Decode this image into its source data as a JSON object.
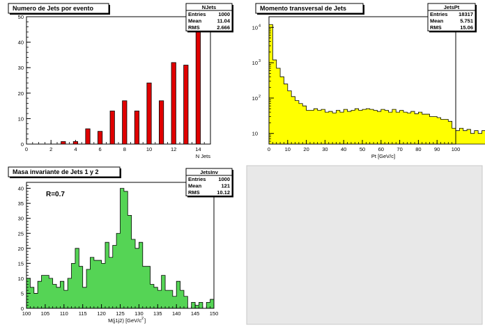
{
  "chart_data": [
    {
      "type": "bar",
      "title": "Numero de Jets por evento",
      "xlabel": "N Jets",
      "ylabel": "",
      "xlim": [
        0,
        15
      ],
      "ylim": [
        0,
        50
      ],
      "x_ticks": [
        0,
        2,
        4,
        6,
        8,
        10,
        12,
        14
      ],
      "y_ticks": [
        0,
        10,
        20,
        30,
        40,
        50
      ],
      "bar_color": "#e00000",
      "fill_color": "#ffffff",
      "x": [
        3,
        4,
        5,
        6,
        7,
        8,
        9,
        10,
        11,
        12,
        13,
        14
      ],
      "values": [
        1,
        1,
        6,
        5,
        13,
        17,
        13,
        24,
        17,
        32,
        31,
        48
      ],
      "stats": {
        "name": "NJets",
        "rows": [
          {
            "label": "Entries",
            "value": "1000"
          },
          {
            "label": "Mean",
            "value": "11.04"
          },
          {
            "label": "RMS",
            "value": "2.666"
          }
        ]
      }
    },
    {
      "type": "area",
      "title": "Momento transversal de Jets",
      "xlabel": "Pt [GeV/c]",
      "ylabel": "",
      "xlim": [
        0,
        100
      ],
      "ylim": [
        5,
        20000
      ],
      "log_y": true,
      "x_ticks": [
        0,
        10,
        20,
        30,
        40,
        50,
        60,
        70,
        80,
        90,
        100
      ],
      "y_ticks": [
        {
          "value": 10,
          "base": "10",
          "exp": ""
        },
        {
          "value": 100,
          "base": "10",
          "exp": "2"
        },
        {
          "value": 1000,
          "base": "10",
          "exp": "3"
        },
        {
          "value": 10000,
          "base": "10",
          "exp": "4"
        }
      ],
      "fill_color": "#ffff00",
      "bin_width": 2,
      "values": [
        12000,
        1200,
        700,
        400,
        250,
        160,
        110,
        85,
        70,
        60,
        45,
        45,
        50,
        45,
        48,
        40,
        42,
        38,
        45,
        40,
        48,
        42,
        45,
        50,
        45,
        48,
        50,
        48,
        45,
        42,
        48,
        45,
        40,
        48,
        40,
        45,
        40,
        38,
        42,
        36,
        40,
        35,
        35,
        30,
        30,
        28,
        25,
        25,
        22,
        14,
        12,
        14,
        12,
        13,
        10,
        12,
        10,
        12,
        14,
        12,
        15,
        10,
        14,
        12,
        10,
        16,
        12,
        18,
        12,
        10
      ],
      "stats": {
        "name": "JetsPt",
        "rows": [
          {
            "label": "Entries",
            "value": "18317"
          },
          {
            "label": "Mean",
            "value": "5.751"
          },
          {
            "label": "RMS",
            "value": "15.06"
          }
        ]
      }
    },
    {
      "type": "area",
      "title": "Masa invariante de Jets 1 y 2",
      "xlabel": "M(j1j2) [GeV/c",
      "xlabel_sup": "2",
      "xlabel_end": "]",
      "ylabel": "",
      "annotation": "R=0.7",
      "xlim": [
        100,
        150
      ],
      "ylim": [
        0,
        42
      ],
      "x_ticks": [
        100,
        105,
        110,
        115,
        120,
        125,
        130,
        135,
        140,
        145,
        150
      ],
      "y_ticks": [
        0,
        5,
        10,
        15,
        20,
        25,
        30,
        35,
        40
      ],
      "fill_color": "#55d455",
      "bin_width": 1,
      "values": [
        10,
        7,
        5,
        9,
        11,
        11,
        10,
        8,
        7,
        9,
        6,
        10,
        15,
        20,
        14,
        7,
        13,
        17,
        16,
        16,
        15,
        22,
        17,
        21,
        25,
        40,
        39,
        31,
        23,
        20,
        22,
        14,
        14,
        8,
        7,
        6,
        11,
        6,
        6,
        4,
        9,
        6,
        4,
        0,
        2,
        1,
        2,
        0,
        2,
        3,
        3
      ]
    }
  ],
  "stats_inv": {
    "name": "JetsInv",
    "rows": [
      {
        "label": "Entries",
        "value": "1000"
      },
      {
        "label": "Mean",
        "value": "121"
      },
      {
        "label": "RMS",
        "value": "10.12"
      }
    ]
  },
  "colors": {
    "pad_background": "#ffffff",
    "empty_pad": "#e8e8e8",
    "axis": "#000000"
  }
}
